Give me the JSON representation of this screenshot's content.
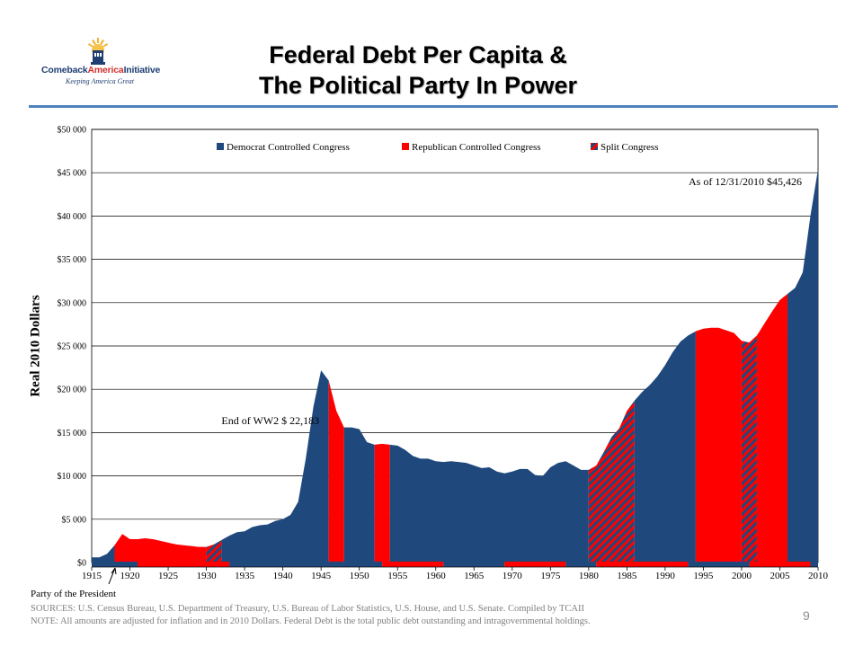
{
  "title_line1": "Federal Debt Per Capita &",
  "title_line2": "The Political Party In Power",
  "logo": {
    "name_a": "Comeback",
    "name_b": "America",
    "name_c": "Initiative",
    "tagline": "Keeping America Great"
  },
  "page_number": "9",
  "footer": {
    "party_label": "Party of  the President",
    "sources": "SOURCES:  U.S.  Census Bureau, U.S.  Department of Treasury, U.S.  Bureau of Labor Statistics, U.S.  House, and U.S.  Senate.  Compiled by TCAII",
    "note": "NOTE:  All amounts are adjusted for inflation and in 2010 Dollars.  Federal Debt is the total public debt outstanding and intragovernmental holdings."
  },
  "colors": {
    "democrat": "#1f497d",
    "republican": "#ff0000",
    "split_stripe_a": "#ff0000",
    "split_stripe_b": "#1f497d",
    "title_rule": "#4f81bd",
    "grid": "#000000"
  },
  "chart_data": {
    "type": "area",
    "ylabel": "Real  2010  Dollars",
    "xlabel": "",
    "ylim": [
      0,
      50000
    ],
    "xlim": [
      1915,
      2010
    ],
    "y_ticks": [
      "$0",
      "$5 000",
      "$10 000",
      "$15 000",
      "$20 000",
      "$25 000",
      "$30 000",
      "$35 000",
      "$40 000",
      "$45 000",
      "$50 000"
    ],
    "y_tick_values": [
      0,
      5000,
      10000,
      15000,
      20000,
      25000,
      30000,
      35000,
      40000,
      45000,
      50000
    ],
    "x_ticks": [
      1915,
      1920,
      1925,
      1930,
      1935,
      1940,
      1945,
      1950,
      1955,
      1960,
      1965,
      1970,
      1975,
      1980,
      1985,
      1990,
      1995,
      2000,
      2005,
      2010
    ],
    "grid": true,
    "legend_position": "top",
    "legend": [
      {
        "label": "Democrat Controlled Congress",
        "color": "#1f497d",
        "pattern": "solid"
      },
      {
        "label": "Republican Controlled Congress",
        "color": "#ff0000",
        "pattern": "solid"
      },
      {
        "label": "Split Congress",
        "color": "#ff0000",
        "pattern": "hatched"
      }
    ],
    "series": [
      {
        "name": "Federal Debt Per Capita",
        "points": [
          [
            1915,
            600
          ],
          [
            1916,
            600
          ],
          [
            1917,
            1000
          ],
          [
            1918,
            2000
          ],
          [
            1919,
            3300
          ],
          [
            1920,
            2700
          ],
          [
            1921,
            2700
          ],
          [
            1922,
            2800
          ],
          [
            1923,
            2700
          ],
          [
            1924,
            2500
          ],
          [
            1925,
            2300
          ],
          [
            1926,
            2100
          ],
          [
            1927,
            2000
          ],
          [
            1928,
            1900
          ],
          [
            1929,
            1800
          ],
          [
            1930,
            1800
          ],
          [
            1931,
            2100
          ],
          [
            1932,
            2600
          ],
          [
            1933,
            3100
          ],
          [
            1934,
            3500
          ],
          [
            1935,
            3600
          ],
          [
            1936,
            4100
          ],
          [
            1937,
            4300
          ],
          [
            1938,
            4400
          ],
          [
            1939,
            4800
          ],
          [
            1940,
            5000
          ],
          [
            1941,
            5500
          ],
          [
            1942,
            7000
          ],
          [
            1943,
            12000
          ],
          [
            1944,
            18000
          ],
          [
            1945,
            22183
          ],
          [
            1946,
            21000
          ],
          [
            1947,
            17500
          ],
          [
            1948,
            15600
          ],
          [
            1949,
            15600
          ],
          [
            1950,
            15400
          ],
          [
            1951,
            13900
          ],
          [
            1952,
            13600
          ],
          [
            1953,
            13700
          ],
          [
            1954,
            13600
          ],
          [
            1955,
            13500
          ],
          [
            1956,
            13000
          ],
          [
            1957,
            12300
          ],
          [
            1958,
            12000
          ],
          [
            1959,
            12000
          ],
          [
            1960,
            11700
          ],
          [
            1961,
            11600
          ],
          [
            1962,
            11700
          ],
          [
            1963,
            11600
          ],
          [
            1964,
            11500
          ],
          [
            1965,
            11200
          ],
          [
            1966,
            10900
          ],
          [
            1967,
            11000
          ],
          [
            1968,
            10500
          ],
          [
            1969,
            10300
          ],
          [
            1970,
            10500
          ],
          [
            1971,
            10800
          ],
          [
            1972,
            10800
          ],
          [
            1973,
            10100
          ],
          [
            1974,
            10000
          ],
          [
            1975,
            11000
          ],
          [
            1976,
            11500
          ],
          [
            1977,
            11700
          ],
          [
            1978,
            11200
          ],
          [
            1979,
            10700
          ],
          [
            1980,
            10700
          ],
          [
            1981,
            11200
          ],
          [
            1982,
            12800
          ],
          [
            1983,
            14500
          ],
          [
            1984,
            15500
          ],
          [
            1985,
            17500
          ],
          [
            1986,
            18700
          ],
          [
            1987,
            19700
          ],
          [
            1988,
            20500
          ],
          [
            1989,
            21500
          ],
          [
            1990,
            22800
          ],
          [
            1991,
            24300
          ],
          [
            1992,
            25500
          ],
          [
            1993,
            26200
          ],
          [
            1994,
            26700
          ],
          [
            1995,
            27000
          ],
          [
            1996,
            27100
          ],
          [
            1997,
            27100
          ],
          [
            1998,
            26800
          ],
          [
            1999,
            26500
          ],
          [
            2000,
            25600
          ],
          [
            2001,
            25400
          ],
          [
            2002,
            26200
          ],
          [
            2003,
            27600
          ],
          [
            2004,
            29000
          ],
          [
            2005,
            30300
          ],
          [
            2006,
            31000
          ],
          [
            2007,
            31700
          ],
          [
            2008,
            33500
          ],
          [
            2009,
            40000
          ],
          [
            2010,
            45426
          ]
        ]
      }
    ],
    "congress_periods": [
      {
        "party": "democrat",
        "from": 1915,
        "to": 1918
      },
      {
        "party": "republican",
        "from": 1918,
        "to": 1930
      },
      {
        "party": "split",
        "from": 1930,
        "to": 1932
      },
      {
        "party": "democrat",
        "from": 1932,
        "to": 1946
      },
      {
        "party": "republican",
        "from": 1946,
        "to": 1948
      },
      {
        "party": "democrat",
        "from": 1948,
        "to": 1952
      },
      {
        "party": "republican",
        "from": 1952,
        "to": 1954
      },
      {
        "party": "democrat",
        "from": 1954,
        "to": 1980
      },
      {
        "party": "split",
        "from": 1980,
        "to": 1986
      },
      {
        "party": "democrat",
        "from": 1986,
        "to": 1994
      },
      {
        "party": "republican",
        "from": 1994,
        "to": 2000
      },
      {
        "party": "split",
        "from": 2000,
        "to": 2002
      },
      {
        "party": "republican",
        "from": 2002,
        "to": 2006
      },
      {
        "party": "democrat",
        "from": 2006,
        "to": 2010
      }
    ],
    "president_periods": [
      {
        "party": "democrat",
        "from": 1915,
        "to": 1921
      },
      {
        "party": "republican",
        "from": 1921,
        "to": 1933
      },
      {
        "party": "democrat",
        "from": 1933,
        "to": 1953
      },
      {
        "party": "republican",
        "from": 1953,
        "to": 1961
      },
      {
        "party": "democrat",
        "from": 1961,
        "to": 1969
      },
      {
        "party": "republican",
        "from": 1969,
        "to": 1977
      },
      {
        "party": "democrat",
        "from": 1977,
        "to": 1981
      },
      {
        "party": "republican",
        "from": 1981,
        "to": 1993
      },
      {
        "party": "democrat",
        "from": 1993,
        "to": 2001
      },
      {
        "party": "republican",
        "from": 2001,
        "to": 2009
      },
      {
        "party": "democrat",
        "from": 2009,
        "to": 2010
      }
    ],
    "annotations": [
      {
        "text": "End of WW2 $ 22,183",
        "x": 1945,
        "y": 22183
      },
      {
        "text": "As of 12/31/2010   $45,426",
        "x": 2010,
        "y": 45426
      }
    ]
  }
}
